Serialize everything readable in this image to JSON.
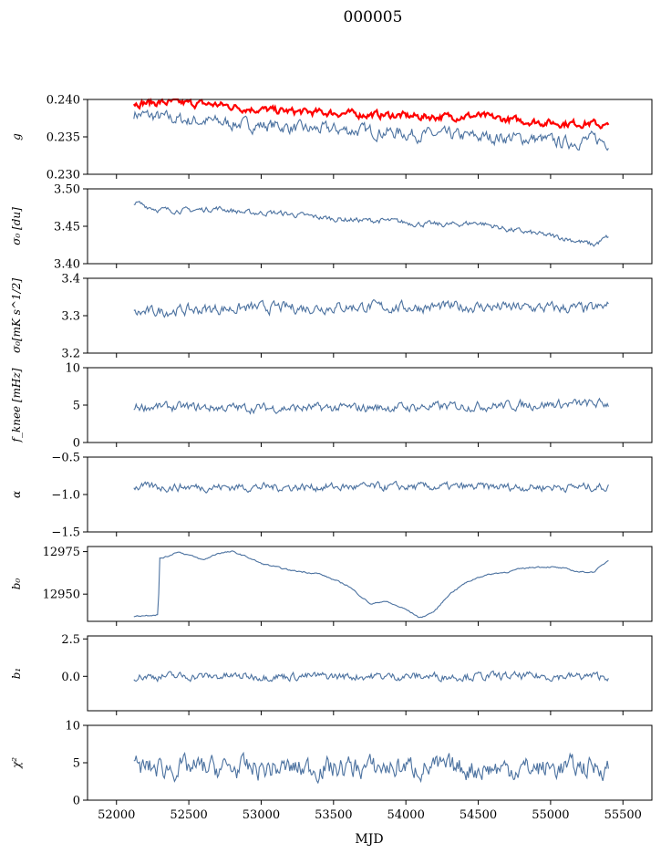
{
  "figure": {
    "title": "000005",
    "xlabel": "MJD"
  },
  "colors": {
    "series": "#4c72a0",
    "highlight": "#ff0000",
    "axis": "#000000"
  },
  "chart_data": [
    {
      "type": "line",
      "id": "g",
      "ylabel": "g",
      "ylim": [
        0.23,
        0.24
      ],
      "yticks": [
        0.23,
        0.235,
        0.24
      ],
      "ytick_labels": [
        "0.230",
        "0.235",
        "0.240"
      ],
      "xlim": [
        51800,
        55700
      ],
      "series": [
        {
          "color": "#4c72a0",
          "x": [
            52120,
            52300,
            52500,
            52700,
            52900,
            53100,
            53300,
            53500,
            53700,
            53900,
            54100,
            54300,
            54500,
            54700,
            54900,
            55100,
            55300,
            55400
          ],
          "y": [
            0.2381,
            0.2376,
            0.2372,
            0.237,
            0.2366,
            0.2365,
            0.236,
            0.236,
            0.2358,
            0.2356,
            0.2353,
            0.2352,
            0.235,
            0.2349,
            0.2347,
            0.2342,
            0.2347,
            0.2343
          ],
          "noise": 0.0007
        },
        {
          "color": "#ff0000",
          "x": [
            52120,
            52300,
            52500,
            52700,
            52900,
            53100,
            53300,
            53500,
            53700,
            53900,
            54100,
            54300,
            54500,
            54700,
            54900,
            55100,
            55300,
            55400
          ],
          "y": [
            0.2395,
            0.2396,
            0.2395,
            0.2393,
            0.2388,
            0.2385,
            0.2383,
            0.2382,
            0.238,
            0.2379,
            0.2377,
            0.2377,
            0.2378,
            0.2373,
            0.237,
            0.2368,
            0.2368,
            0.2363
          ],
          "noise": 0.0004
        }
      ]
    },
    {
      "type": "line",
      "id": "sigma0_du",
      "ylabel": "σ₀ [du]",
      "ylim": [
        3.4,
        3.5
      ],
      "yticks": [
        3.4,
        3.45,
        3.5
      ],
      "ytick_labels": [
        "3.40",
        "3.45",
        "3.50"
      ],
      "xlim": [
        51800,
        55700
      ],
      "series": [
        {
          "color": "#4c72a0",
          "x": [
            52120,
            52300,
            52500,
            52700,
            52900,
            53100,
            53300,
            53500,
            53700,
            53900,
            54100,
            54300,
            54500,
            54700,
            54900,
            55100,
            55300,
            55400
          ],
          "y": [
            3.482,
            3.472,
            3.471,
            3.474,
            3.468,
            3.468,
            3.464,
            3.46,
            3.458,
            3.457,
            3.453,
            3.452,
            3.455,
            3.446,
            3.44,
            3.434,
            3.425,
            3.436
          ],
          "noise": 0.003
        }
      ]
    },
    {
      "type": "line",
      "id": "sigma0_mk",
      "ylabel": "σ₀[mK s^1/2]",
      "ylim": [
        3.2,
        3.4
      ],
      "yticks": [
        3.2,
        3.3,
        3.4
      ],
      "ytick_labels": [
        "3.2",
        "3.3",
        "3.4"
      ],
      "xlim": [
        51800,
        55700
      ],
      "series": [
        {
          "color": "#4c72a0",
          "x": [
            52120,
            52300,
            52500,
            52700,
            52900,
            53100,
            53300,
            53500,
            53700,
            53900,
            54100,
            54300,
            54500,
            54700,
            54900,
            55100,
            55300,
            55400
          ],
          "y": [
            3.305,
            3.312,
            3.315,
            3.318,
            3.32,
            3.322,
            3.321,
            3.323,
            3.324,
            3.322,
            3.323,
            3.323,
            3.324,
            3.322,
            3.321,
            3.32,
            3.318,
            3.325
          ],
          "noise": 0.012
        }
      ]
    },
    {
      "type": "line",
      "id": "fknee",
      "ylabel": "f_knee [mHz]",
      "ylim": [
        0,
        10
      ],
      "yticks": [
        0,
        5,
        10
      ],
      "ytick_labels": [
        "0",
        "5",
        "10"
      ],
      "xlim": [
        51800,
        55700
      ],
      "series": [
        {
          "color": "#4c72a0",
          "x": [
            52120,
            52500,
            53000,
            53500,
            54000,
            54500,
            55000,
            55400
          ],
          "y": [
            4.8,
            4.7,
            4.6,
            4.6,
            4.7,
            4.9,
            5.1,
            5.2
          ],
          "noise": 0.5
        }
      ]
    },
    {
      "type": "line",
      "id": "alpha",
      "ylabel": "α",
      "ylim": [
        -1.5,
        -0.5
      ],
      "yticks": [
        -1.5,
        -1.0,
        -0.5
      ],
      "ytick_labels": [
        "−1.5",
        "−1.0",
        "−0.5"
      ],
      "xlim": [
        51800,
        55700
      ],
      "series": [
        {
          "color": "#4c72a0",
          "x": [
            52120,
            52500,
            53000,
            53500,
            54000,
            54500,
            55000,
            55400
          ],
          "y": [
            -0.9,
            -0.9,
            -0.9,
            -0.9,
            -0.9,
            -0.9,
            -0.9,
            -0.9
          ],
          "noise": 0.045
        }
      ]
    },
    {
      "type": "line",
      "id": "b0",
      "ylabel": "b₀",
      "ylim": [
        12934,
        12978
      ],
      "yticks": [
        12950,
        12975
      ],
      "ytick_labels": [
        "12950",
        "12975"
      ],
      "xlim": [
        51800,
        55700
      ],
      "series": [
        {
          "color": "#4c72a0",
          "x": [
            52120,
            52200,
            52290,
            52295,
            52350,
            52420,
            52500,
            52600,
            52700,
            52800,
            52900,
            53000,
            53200,
            53400,
            53600,
            53700,
            53760,
            53850,
            54000,
            54100,
            54200,
            54300,
            54400,
            54500,
            54600,
            54700,
            54800,
            54900,
            55000,
            55100,
            55200,
            55300,
            55400
          ],
          "y": [
            12937,
            12937.5,
            12938,
            12971,
            12972,
            12975,
            12973,
            12970,
            12974,
            12975,
            12972,
            12968,
            12964,
            12962,
            12955,
            12948,
            12944,
            12946,
            12941,
            12936,
            12940,
            12950,
            12956,
            12960,
            12962,
            12963,
            12965,
            12966,
            12966,
            12965,
            12963,
            12963,
            12970
          ],
          "noise": 0.35
        }
      ]
    },
    {
      "type": "line",
      "id": "b1",
      "ylabel": "b₁",
      "ylim": [
        -2.3,
        2.7
      ],
      "yticks": [
        0.0,
        2.5
      ],
      "ytick_labels": [
        "0.0",
        "2.5"
      ],
      "xlim": [
        51800,
        55700
      ],
      "series": [
        {
          "color": "#4c72a0",
          "x": [
            52120,
            52500,
            53000,
            53500,
            54000,
            54500,
            55000,
            55400
          ],
          "y": [
            0,
            0,
            0,
            0,
            0,
            0,
            0,
            0
          ],
          "noise": 0.22
        }
      ]
    },
    {
      "type": "line",
      "id": "chi2",
      "ylabel": "χ²",
      "ylim": [
        0,
        10
      ],
      "yticks": [
        0,
        5,
        10
      ],
      "ytick_labels": [
        "0",
        "5",
        "10"
      ],
      "xlim": [
        51800,
        55700
      ],
      "xticks": [
        52000,
        52500,
        53000,
        53500,
        54000,
        54500,
        55000,
        55500
      ],
      "xtick_labels": [
        "52000",
        "52500",
        "53000",
        "53500",
        "54000",
        "54500",
        "55000",
        "55500"
      ],
      "series": [
        {
          "color": "#4c72a0",
          "x": [
            52120,
            52500,
            53000,
            53500,
            54000,
            54500,
            55000,
            55400
          ],
          "y": [
            4.3,
            4.3,
            4.2,
            4.3,
            4.4,
            4.2,
            4.3,
            4.5
          ],
          "noise": 1.2
        }
      ]
    }
  ]
}
